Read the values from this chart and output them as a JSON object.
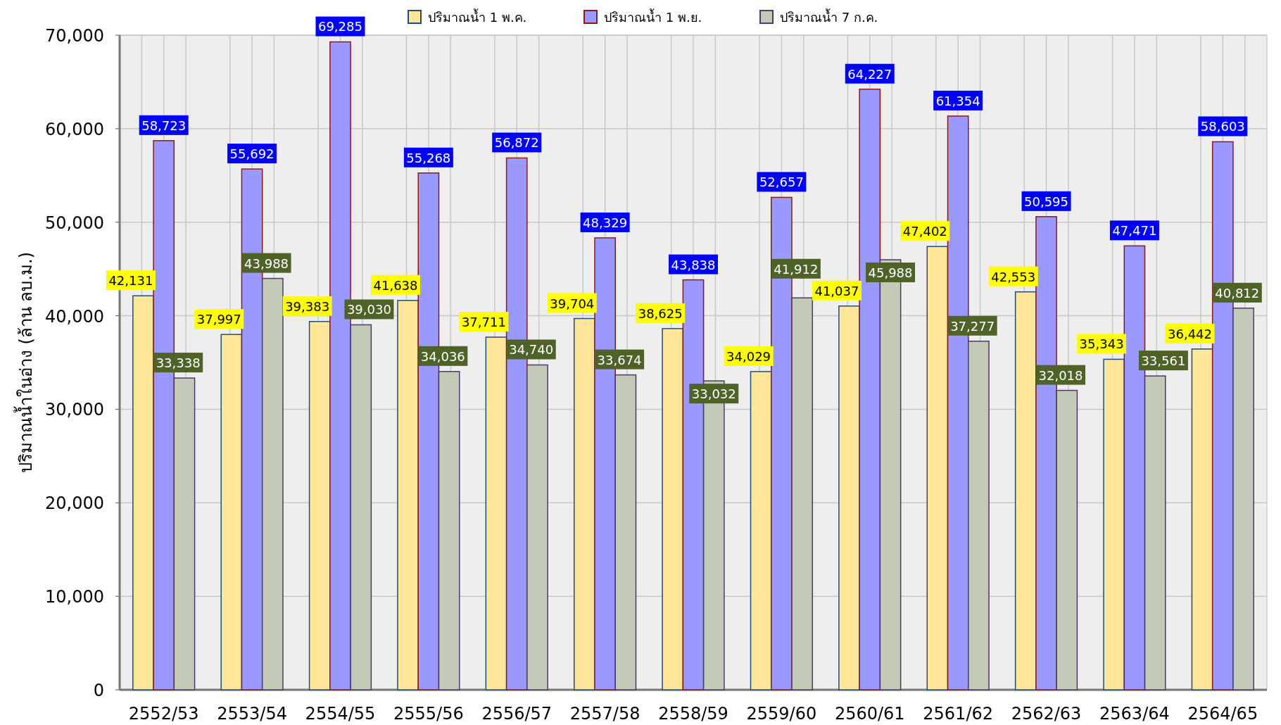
{
  "chart_data": {
    "type": "bar",
    "ylabel": "ปริมาณน้ำในอ่าง (ล้าน ลบ.ม.)",
    "categories": [
      "2552/53",
      "2553/54",
      "2554/55",
      "2555/56",
      "2556/57",
      "2557/58",
      "2558/59",
      "2559/60",
      "2560/61",
      "2561/62",
      "2562/63",
      "2563/64",
      "2564/65"
    ],
    "series": [
      {
        "name": "ปริมาณน้ำ 1  พ.ค.",
        "color": "#ffe699",
        "values": [
          42131,
          37997,
          39383,
          41638,
          37711,
          39704,
          38625,
          34029,
          41037,
          47402,
          42553,
          35343,
          36442
        ],
        "value_labels": [
          "42,131",
          "37,997",
          "39,383",
          "41,638",
          "37,711",
          "39,704",
          "38,625",
          "34,029",
          "41,037",
          "47,402",
          "42,553",
          "35,343",
          "36,442"
        ]
      },
      {
        "name": "ปริมาณน้ำ 1  พ.ย.",
        "color": "#9999ff",
        "values": [
          58723,
          55692,
          69285,
          55268,
          56872,
          48329,
          43838,
          52657,
          64227,
          61354,
          50595,
          47471,
          58603
        ],
        "value_labels": [
          "58,723",
          "55,692",
          "69,285",
          "55,268",
          "56,872",
          "48,329",
          "43,838",
          "52,657",
          "64,227",
          "61,354",
          "50,595",
          "47,471",
          "58,603"
        ]
      },
      {
        "name": "ปริมาณน้ำ 7 ก.ค.",
        "color": "#c4cab8",
        "values": [
          33338,
          43988,
          39030,
          34036,
          34740,
          33674,
          33032,
          41912,
          45988,
          37277,
          32018,
          33561,
          40812
        ],
        "value_labels": [
          "33,338",
          "43,988",
          "39,030",
          "34,036",
          "34,740",
          "33,674",
          "33,032",
          "41,912",
          "45,988",
          "37,277",
          "32,018",
          "33,561",
          "40,812"
        ]
      }
    ],
    "ylim": [
      0,
      70000
    ],
    "yticks": [
      {
        "value": 0,
        "label": "0"
      },
      {
        "value": 10000,
        "label": "10,000"
      },
      {
        "value": 20000,
        "label": "20,000"
      },
      {
        "value": 30000,
        "label": "30,000"
      },
      {
        "value": 40000,
        "label": "40,000"
      },
      {
        "value": 50000,
        "label": "50,000"
      },
      {
        "value": 60000,
        "label": "60,000"
      },
      {
        "value": 70000,
        "label": "70,000"
      }
    ],
    "grid": true,
    "legend": "top"
  }
}
